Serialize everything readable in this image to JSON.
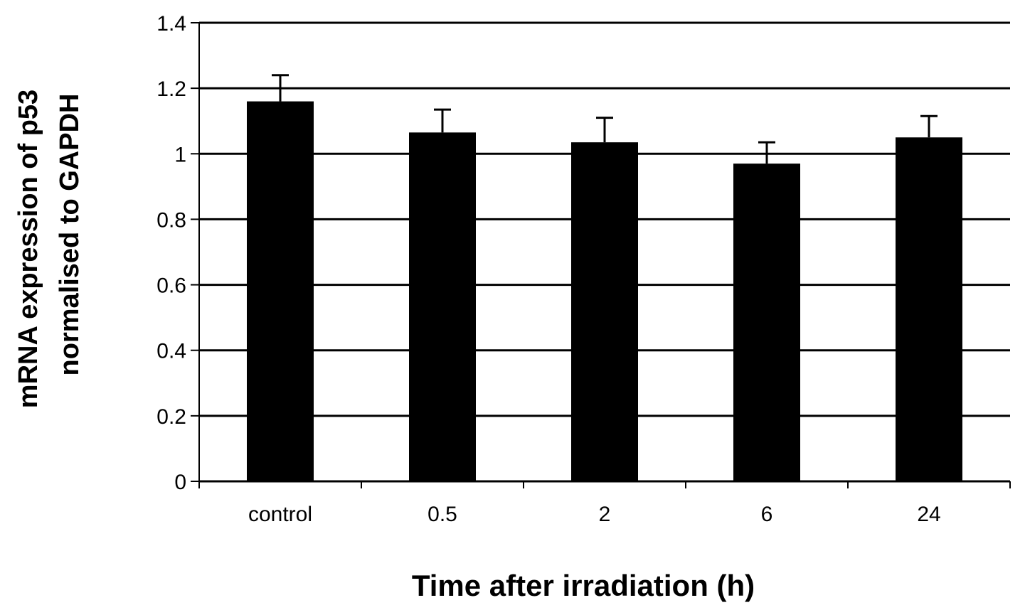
{
  "chart_data": {
    "type": "bar",
    "categories": [
      "control",
      "0.5",
      "2",
      "6",
      "24"
    ],
    "values": [
      1.16,
      1.065,
      1.035,
      0.97,
      1.05
    ],
    "errors": [
      0.08,
      0.07,
      0.075,
      0.065,
      0.065
    ],
    "ylabel_lines": [
      "mRNA expression of p53",
      "normalised to GAPDH"
    ],
    "xlabel": "Time after irradiation (h)",
    "ylim": [
      0,
      1.4
    ],
    "yticks": [
      "0",
      "0.2",
      "0.4",
      "0.6",
      "0.8",
      "1",
      "1.2",
      "1.4"
    ],
    "grid": "horizontal",
    "bar_color": "#000000"
  }
}
